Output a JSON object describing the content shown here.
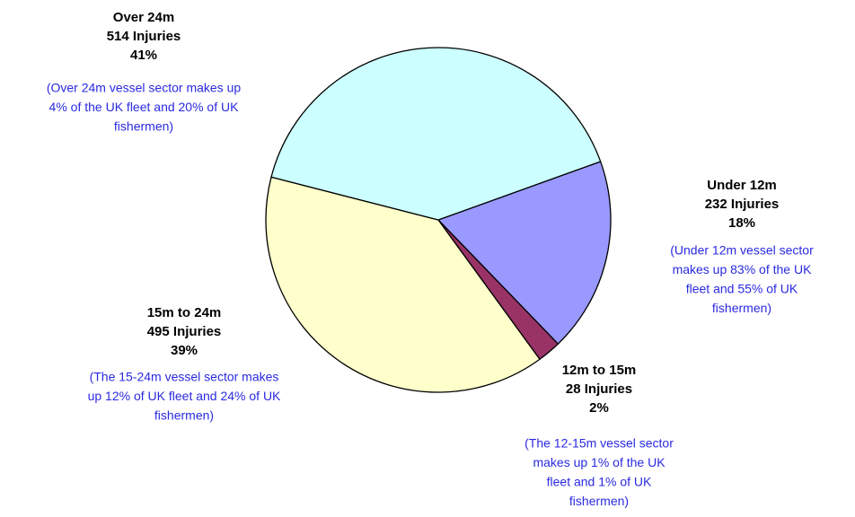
{
  "chart_data": {
    "type": "pie",
    "categories": [
      "Under 12m",
      "12m to 15m",
      "15m to 24m",
      "Over 24m"
    ],
    "values": [
      232,
      28,
      495,
      514
    ],
    "value_labels": [
      "232 Injuries",
      "28 Injuries",
      "495 Injuries",
      "514 Injuries"
    ],
    "percent_labels": [
      "18%",
      "2%",
      "39%",
      "41%"
    ],
    "notes": [
      [
        "(Under 12m vessel sector",
        "makes up 83% of the UK",
        "fleet and 55% of UK",
        "fishermen)"
      ],
      [
        "(The 12-15m vessel sector",
        "makes up 1% of the UK",
        "fleet and 1% of UK",
        "fishermen)"
      ],
      [
        "(The 15-24m vessel sector makes",
        "up 12% of UK fleet and 24% of UK",
        "fishermen)"
      ],
      [
        "(Over 24m vessel sector makes up",
        "4% of the UK fleet and 20% of UK",
        "fishermen)"
      ]
    ],
    "colors": [
      "#9999ff",
      "#993366",
      "#ffffcc",
      "#ccffff"
    ]
  }
}
